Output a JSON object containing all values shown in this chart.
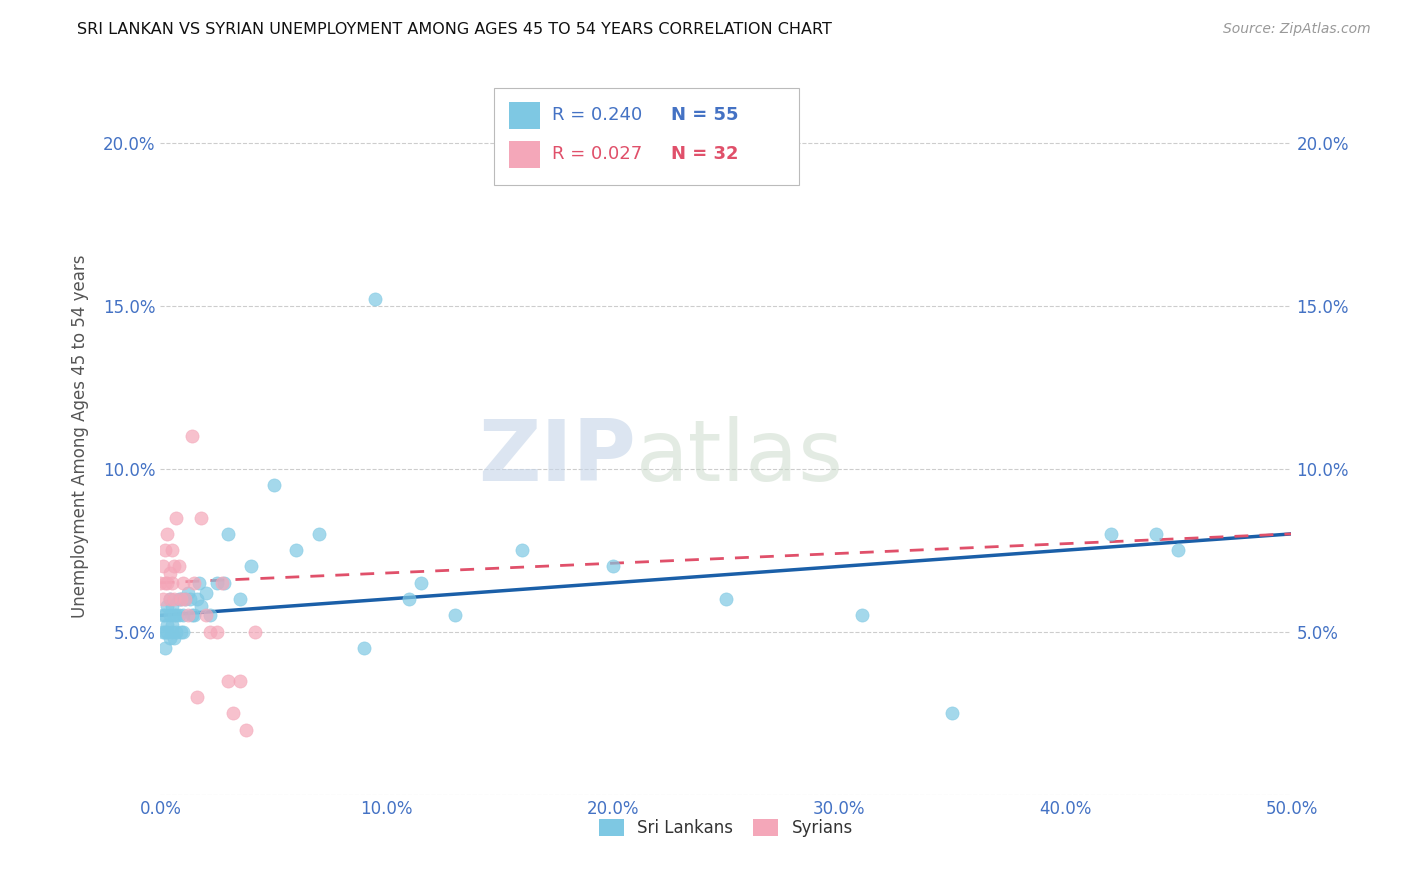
{
  "title": "SRI LANKAN VS SYRIAN UNEMPLOYMENT AMONG AGES 45 TO 54 YEARS CORRELATION CHART",
  "source": "Source: ZipAtlas.com",
  "ylabel": "Unemployment Among Ages 45 to 54 years",
  "xlim": [
    0,
    0.5
  ],
  "ylim": [
    0,
    0.22
  ],
  "xticks": [
    0.0,
    0.1,
    0.2,
    0.3,
    0.4,
    0.5
  ],
  "xticklabels": [
    "0.0%",
    "10.0%",
    "20.0%",
    "30.0%",
    "40.0%",
    "50.0%"
  ],
  "yticks": [
    0.0,
    0.05,
    0.1,
    0.15,
    0.2
  ],
  "yticklabels": [
    "",
    "5.0%",
    "10.0%",
    "15.0%",
    "20.0%"
  ],
  "sri_lankan_color": "#7ec8e3",
  "syrian_color": "#f4a7b9",
  "trend_blue_color": "#1a5fa8",
  "trend_pink_color": "#e0506a",
  "watermark_zip": "ZIP",
  "watermark_atlas": "atlas",
  "sri_lankans_x": [
    0.001,
    0.001,
    0.002,
    0.002,
    0.002,
    0.003,
    0.003,
    0.003,
    0.004,
    0.004,
    0.004,
    0.005,
    0.005,
    0.005,
    0.006,
    0.006,
    0.007,
    0.007,
    0.008,
    0.008,
    0.009,
    0.009,
    0.01,
    0.01,
    0.011,
    0.012,
    0.013,
    0.014,
    0.015,
    0.016,
    0.017,
    0.018,
    0.02,
    0.022,
    0.025,
    0.028,
    0.03,
    0.035,
    0.04,
    0.05,
    0.06,
    0.07,
    0.09,
    0.095,
    0.11,
    0.115,
    0.13,
    0.16,
    0.2,
    0.25,
    0.31,
    0.35,
    0.42,
    0.44,
    0.45
  ],
  "sri_lankans_y": [
    0.05,
    0.055,
    0.045,
    0.05,
    0.055,
    0.05,
    0.052,
    0.058,
    0.048,
    0.055,
    0.06,
    0.05,
    0.052,
    0.058,
    0.048,
    0.055,
    0.05,
    0.055,
    0.055,
    0.06,
    0.05,
    0.06,
    0.05,
    0.055,
    0.06,
    0.062,
    0.06,
    0.055,
    0.055,
    0.06,
    0.065,
    0.058,
    0.062,
    0.055,
    0.065,
    0.065,
    0.08,
    0.06,
    0.07,
    0.095,
    0.075,
    0.08,
    0.045,
    0.152,
    0.06,
    0.065,
    0.055,
    0.075,
    0.07,
    0.06,
    0.055,
    0.025,
    0.08,
    0.08,
    0.075
  ],
  "syrians_x": [
    0.0,
    0.001,
    0.001,
    0.002,
    0.002,
    0.003,
    0.003,
    0.004,
    0.004,
    0.005,
    0.005,
    0.006,
    0.006,
    0.007,
    0.008,
    0.009,
    0.01,
    0.011,
    0.012,
    0.014,
    0.015,
    0.016,
    0.018,
    0.02,
    0.022,
    0.025,
    0.027,
    0.03,
    0.032,
    0.035,
    0.038,
    0.042
  ],
  "syrians_y": [
    0.065,
    0.06,
    0.07,
    0.065,
    0.075,
    0.08,
    0.065,
    0.06,
    0.068,
    0.065,
    0.075,
    0.07,
    0.06,
    0.085,
    0.07,
    0.06,
    0.065,
    0.06,
    0.055,
    0.11,
    0.065,
    0.03,
    0.085,
    0.055,
    0.05,
    0.05,
    0.065,
    0.035,
    0.025,
    0.035,
    0.02,
    0.05
  ],
  "sl_trend_x0": 0.0,
  "sl_trend_x1": 0.5,
  "sl_trend_y0": 0.055,
  "sl_trend_y1": 0.08,
  "sy_trend_x0": 0.0,
  "sy_trend_x1": 0.5,
  "sy_trend_y0": 0.065,
  "sy_trend_y1": 0.08
}
